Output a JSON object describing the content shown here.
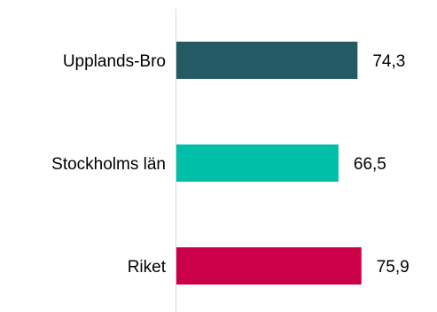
{
  "chart_data": {
    "type": "bar",
    "orientation": "horizontal",
    "categories": [
      "Upplands-Bro",
      "Stockholms län",
      "Riket"
    ],
    "values": [
      74.3,
      66.5,
      75.9
    ],
    "value_labels": [
      "74,3",
      "66,5",
      "75,9"
    ],
    "colors": [
      "#235a63",
      "#00bfa8",
      "#cc0049"
    ],
    "xlim": [
      0,
      100
    ],
    "grid": false,
    "legend": "none"
  }
}
